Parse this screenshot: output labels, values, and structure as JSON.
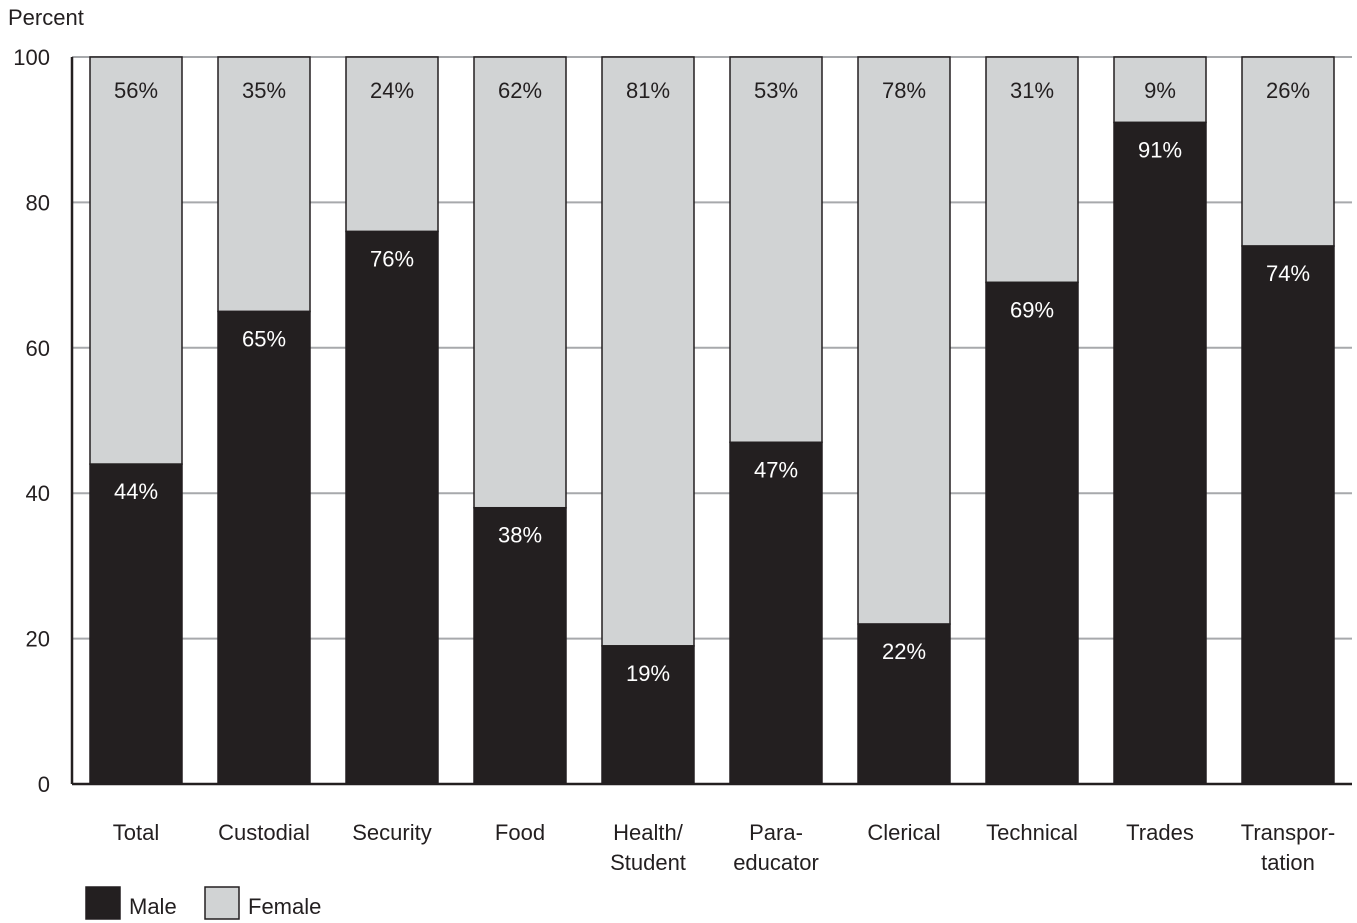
{
  "chart_data": {
    "type": "bar",
    "stacked": true,
    "ylabel": "Percent",
    "xlabel": "",
    "ylim": [
      0,
      100
    ],
    "yticks": [
      0,
      20,
      40,
      60,
      80,
      100
    ],
    "grid": true,
    "legend_position": "bottom-left",
    "categories": [
      [
        "Total"
      ],
      [
        "Custodial"
      ],
      [
        "Security"
      ],
      [
        "Food"
      ],
      [
        "Health/",
        "Student"
      ],
      [
        "Para-",
        "educator"
      ],
      [
        "Clerical"
      ],
      [
        "Technical"
      ],
      [
        "Trades"
      ],
      [
        "Transpor-",
        "tation"
      ]
    ],
    "series": [
      {
        "name": "Male",
        "color": "#231f20",
        "label_color": "#ffffff",
        "values": [
          44,
          65,
          76,
          38,
          19,
          47,
          22,
          69,
          91,
          74
        ],
        "labels": [
          "44%",
          "65%",
          "76%",
          "38%",
          "19%",
          "47%",
          "22%",
          "69%",
          "91%",
          "74%"
        ]
      },
      {
        "name": "Female",
        "color": "#d1d3d4",
        "label_color": "#231f20",
        "values": [
          56,
          35,
          24,
          62,
          81,
          53,
          78,
          31,
          9,
          26
        ],
        "labels": [
          "56%",
          "35%",
          "24%",
          "62%",
          "81%",
          "53%",
          "78%",
          "31%",
          "9%",
          "26%"
        ]
      }
    ]
  }
}
